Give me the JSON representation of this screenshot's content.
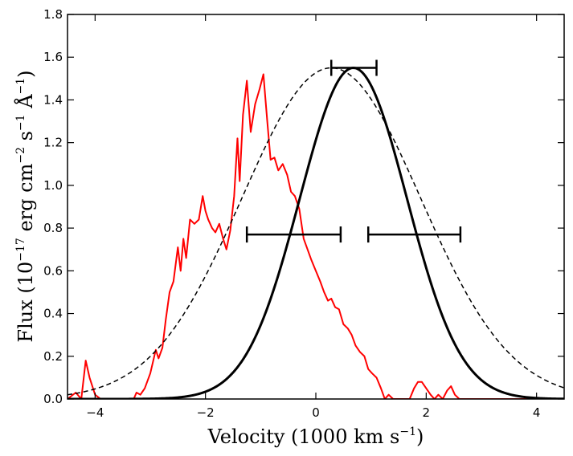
{
  "chart_data": {
    "type": "line",
    "title": "",
    "xlim": [
      -4.5,
      4.5
    ],
    "ylim": [
      0.0,
      1.8
    ],
    "xticks": [
      -4,
      -2,
      0,
      2,
      4
    ],
    "yticks": [
      0.0,
      0.2,
      0.4,
      0.6,
      0.8,
      1.0,
      1.2,
      1.4,
      1.6,
      1.8
    ],
    "xtick_labels": [
      "−4",
      "−2",
      "0",
      "2",
      "4"
    ],
    "ytick_labels": [
      "0.0",
      "0.2",
      "0.4",
      "0.6",
      "0.8",
      "1.0",
      "1.2",
      "1.4",
      "1.6",
      "1.8"
    ],
    "xlabel": {
      "main": "Velocity (1000 km s",
      "sup": "−1",
      "tail": ")"
    },
    "ylabel": {
      "p1": "Flux (10",
      "sup1": "−17",
      "p2": " erg cm",
      "sup2": "−2",
      "p3": " s",
      "sup3": "−1",
      "p4": " Å",
      "sup4": "−1",
      "p5": ")"
    },
    "grid": false,
    "series": [
      {
        "style": "red solid, noisy observed spectrum",
        "color": "#ff0000",
        "x": [
          -4.5,
          -4.35,
          -4.25,
          -4.17,
          -4.1,
          -4.0,
          -3.9,
          -3.8,
          -3.7,
          -3.6,
          -3.5,
          -3.4,
          -3.3,
          -3.25,
          -3.18,
          -3.1,
          -3.0,
          -2.9,
          -2.85,
          -2.78,
          -2.72,
          -2.65,
          -2.58,
          -2.5,
          -2.45,
          -2.4,
          -2.35,
          -2.28,
          -2.2,
          -2.12,
          -2.05,
          -2.0,
          -1.95,
          -1.88,
          -1.82,
          -1.75,
          -1.68,
          -1.62,
          -1.55,
          -1.48,
          -1.42,
          -1.38,
          -1.32,
          -1.25,
          -1.18,
          -1.1,
          -1.02,
          -0.95,
          -0.88,
          -0.82,
          -0.75,
          -0.68,
          -0.6,
          -0.52,
          -0.45,
          -0.38,
          -0.3,
          -0.22,
          -0.15,
          -0.08,
          0.0,
          0.08,
          0.15,
          0.22,
          0.28,
          0.35,
          0.42,
          0.5,
          0.58,
          0.65,
          0.72,
          0.8,
          0.88,
          0.95,
          1.02,
          1.1,
          1.18,
          1.25,
          1.32,
          1.4,
          1.48,
          1.55,
          1.62,
          1.7,
          1.78,
          1.85,
          1.92,
          2.0,
          2.08,
          2.15,
          2.22,
          2.3,
          2.38,
          2.45,
          2.52,
          2.6,
          2.68,
          2.75,
          2.82,
          2.9,
          2.98,
          3.05,
          3.12,
          3.2,
          3.28,
          3.35,
          3.42,
          3.5,
          3.58,
          3.65,
          3.72,
          3.8,
          3.88,
          3.95,
          4.02,
          4.1,
          4.18,
          4.25,
          4.32,
          4.4,
          4.5
        ],
        "y": [
          0.0,
          0.03,
          0.0,
          0.18,
          0.1,
          0.02,
          0.0,
          0.0,
          0.0,
          0.0,
          0.0,
          0.0,
          0.0,
          0.03,
          0.02,
          0.05,
          0.12,
          0.23,
          0.19,
          0.24,
          0.37,
          0.5,
          0.55,
          0.71,
          0.6,
          0.75,
          0.66,
          0.84,
          0.82,
          0.84,
          0.95,
          0.88,
          0.84,
          0.8,
          0.78,
          0.82,
          0.75,
          0.7,
          0.79,
          0.95,
          1.22,
          1.02,
          1.33,
          1.49,
          1.25,
          1.38,
          1.45,
          1.52,
          1.3,
          1.12,
          1.13,
          1.07,
          1.1,
          1.05,
          0.97,
          0.95,
          0.89,
          0.75,
          0.7,
          0.65,
          0.6,
          0.55,
          0.5,
          0.46,
          0.47,
          0.43,
          0.42,
          0.35,
          0.33,
          0.3,
          0.25,
          0.22,
          0.2,
          0.14,
          0.12,
          0.1,
          0.05,
          0.0,
          0.02,
          0.0,
          0.0,
          0.0,
          0.0,
          0.0,
          0.05,
          0.08,
          0.08,
          0.05,
          0.02,
          0.0,
          0.02,
          0.0,
          0.04,
          0.06,
          0.02,
          0.0,
          0.0,
          0.0,
          0.0,
          0.0,
          0.0,
          0.0,
          0.0,
          0.0,
          0.0,
          0.0,
          0.0,
          0.0,
          0.0,
          0.0,
          0.0,
          0.0,
          0.0,
          0.0,
          0.0,
          0.0,
          0.0,
          0.0,
          0.0,
          0.0,
          0.0
        ]
      },
      {
        "style": "black thick solid, gaussian",
        "color": "#000000",
        "function": "gaussian",
        "amplitude": 1.55,
        "center": 0.68,
        "sigma": 0.97
      },
      {
        "style": "black dashed, gaussian",
        "color": "#000000",
        "function": "gaussian",
        "amplitude": 1.55,
        "center": 0.28,
        "sigma": 1.62
      }
    ],
    "error_bars": [
      {
        "y": 1.55,
        "x_low": 0.28,
        "x_high": 1.1
      },
      {
        "y": 0.77,
        "x_low": -1.25,
        "x_high": 0.45
      },
      {
        "y": 0.77,
        "x_low": 0.95,
        "x_high": 2.62
      }
    ]
  }
}
